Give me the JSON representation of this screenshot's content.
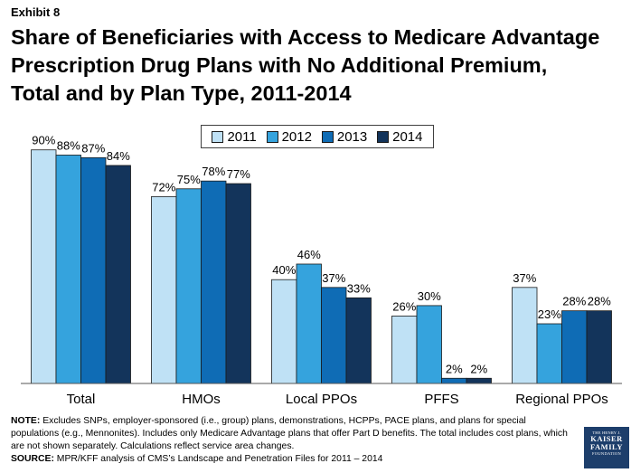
{
  "exhibit_label": "Exhibit 8",
  "title_lines": [
    "Share of Beneficiaries with Access to Medicare Advantage",
    "Prescription Drug Plans with No Additional Premium,",
    "Total and by Plan Type, 2011-2014"
  ],
  "footer": {
    "note_label": "NOTE:",
    "note_text": " Excludes SNPs, employer-sponsored (i.e., group) plans, demonstrations, HCPPs, PACE plans, and plans for special populations (e.g., Mennonites).  Includes only Medicare Advantage plans that offer Part D benefits. The total includes cost plans, which are not shown separately. Calculations reflect service area changes.",
    "source_label": "SOURCE:",
    "source_text": "  MPR/KFF analysis of CMS’s Landscape and Penetration Files for 2011 – 2014"
  },
  "logo": {
    "line1": "THE HENRY J.",
    "line2": "KAISER",
    "line3": "FAMILY",
    "line4": "FOUNDATION"
  },
  "chart_data": {
    "type": "bar",
    "categories": [
      "Total",
      "HMOs",
      "Local PPOs",
      "PFFS",
      "Regional PPOs"
    ],
    "series": [
      {
        "name": "2011",
        "values": [
          90,
          72,
          40,
          26,
          37
        ],
        "color": "#bfe1f5"
      },
      {
        "name": "2012",
        "values": [
          88,
          75,
          46,
          30,
          23
        ],
        "color": "#35a3dd"
      },
      {
        "name": "2013",
        "values": [
          87,
          78,
          37,
          2,
          28
        ],
        "color": "#0f6cb5"
      },
      {
        "name": "2014",
        "values": [
          84,
          77,
          33,
          2,
          28
        ],
        "color": "#13345b"
      }
    ],
    "value_suffix": "%",
    "ylim": [
      0,
      100
    ],
    "grid": false,
    "legend_position": "top-center"
  }
}
